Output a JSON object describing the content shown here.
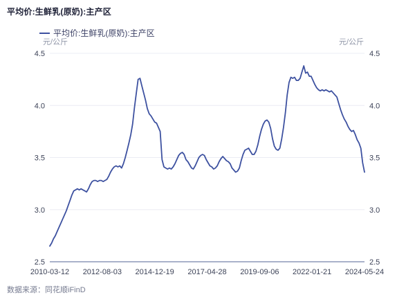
{
  "header": {
    "title": "平均价:生鲜乳(原奶):主产区"
  },
  "legend": {
    "label": "平均价:生鲜乳(原奶):主产区"
  },
  "axes": {
    "unit_left": "元/公斤",
    "unit_right": "元/公斤"
  },
  "footer": {
    "source": "数据来源：同花顺iFinD"
  },
  "style": {
    "line_color": "#3d51a0",
    "grid_color": "#ebecf4",
    "axis_color": "#a9b1ca",
    "tick_text_color": "#3c4257"
  },
  "chart_data": {
    "type": "line",
    "title": "平均价:生鲜乳(原奶):主产区",
    "ylabel": "元/公斤",
    "ylim": [
      2.5,
      4.5
    ],
    "y_ticks": [
      4.5,
      4.0,
      3.5,
      3.0,
      2.5
    ],
    "grid": "horizontal",
    "legend_position": "top-left",
    "x_tick_labels": [
      "2010-03-12",
      "2012-08-03",
      "2014-12-19",
      "2017-04-28",
      "2019-09-06",
      "2022-01-21",
      "2024-05-24"
    ],
    "series": [
      {
        "name": "平均价:生鲜乳(原奶):主产区",
        "color": "#3d51a0",
        "dates": [
          "2010-03",
          "2010-04",
          "2010-05",
          "2010-06",
          "2010-07",
          "2010-08",
          "2010-09",
          "2010-10",
          "2010-11",
          "2010-12",
          "2011-01",
          "2011-02",
          "2011-03",
          "2011-04",
          "2011-05",
          "2011-06",
          "2011-07",
          "2011-08",
          "2011-09",
          "2011-10",
          "2011-11",
          "2011-12",
          "2012-01",
          "2012-02",
          "2012-03",
          "2012-04",
          "2012-05",
          "2012-06",
          "2012-07",
          "2012-08",
          "2012-09",
          "2012-10",
          "2012-11",
          "2012-12",
          "2013-01",
          "2013-02",
          "2013-03",
          "2013-04",
          "2013-05",
          "2013-06",
          "2013-07",
          "2013-08",
          "2013-09",
          "2013-10",
          "2013-11",
          "2013-12",
          "2014-01",
          "2014-02",
          "2014-03",
          "2014-04",
          "2014-05",
          "2014-06",
          "2014-07",
          "2014-08",
          "2014-09",
          "2014-10",
          "2014-11",
          "2014-12",
          "2015-01",
          "2015-02",
          "2015-03",
          "2015-04",
          "2015-05",
          "2015-06",
          "2015-07",
          "2015-08",
          "2015-09",
          "2015-10",
          "2015-11",
          "2015-12",
          "2016-01",
          "2016-02",
          "2016-03",
          "2016-04",
          "2016-05",
          "2016-06",
          "2016-07",
          "2016-08",
          "2016-09",
          "2016-10",
          "2016-11",
          "2016-12",
          "2017-01",
          "2017-02",
          "2017-03",
          "2017-04",
          "2017-05",
          "2017-06",
          "2017-07",
          "2017-08",
          "2017-09",
          "2017-10",
          "2017-11",
          "2017-12",
          "2018-01",
          "2018-02",
          "2018-03",
          "2018-04",
          "2018-05",
          "2018-06",
          "2018-07",
          "2018-08",
          "2018-09",
          "2018-10",
          "2018-11",
          "2018-12",
          "2019-01",
          "2019-02",
          "2019-03",
          "2019-04",
          "2019-05",
          "2019-06",
          "2019-07",
          "2019-08",
          "2019-09",
          "2019-10",
          "2019-11",
          "2019-12",
          "2020-01",
          "2020-02",
          "2020-03",
          "2020-04",
          "2020-05",
          "2020-06",
          "2020-07",
          "2020-08",
          "2020-09",
          "2020-10",
          "2020-11",
          "2020-12",
          "2021-01",
          "2021-02",
          "2021-03",
          "2021-04",
          "2021-05",
          "2021-06",
          "2021-07",
          "2021-08",
          "2021-09",
          "2021-10",
          "2021-11",
          "2021-12",
          "2022-01",
          "2022-02",
          "2022-03",
          "2022-04",
          "2022-05",
          "2022-06",
          "2022-07",
          "2022-08",
          "2022-09",
          "2022-10",
          "2022-11",
          "2022-12",
          "2023-01",
          "2023-02",
          "2023-03",
          "2023-04",
          "2023-05",
          "2023-06",
          "2023-07",
          "2023-08",
          "2023-09",
          "2023-10",
          "2023-11",
          "2023-12",
          "2024-01",
          "2024-02",
          "2024-03",
          "2024-04",
          "2024-05-10",
          "2024-05-24"
        ],
        "values": [
          2.65,
          2.68,
          2.72,
          2.75,
          2.79,
          2.83,
          2.87,
          2.91,
          2.95,
          2.99,
          3.04,
          3.09,
          3.14,
          3.18,
          3.19,
          3.2,
          3.19,
          3.2,
          3.19,
          3.18,
          3.17,
          3.2,
          3.24,
          3.27,
          3.28,
          3.28,
          3.27,
          3.28,
          3.28,
          3.27,
          3.28,
          3.29,
          3.32,
          3.36,
          3.39,
          3.41,
          3.42,
          3.41,
          3.42,
          3.4,
          3.44,
          3.5,
          3.57,
          3.64,
          3.72,
          3.82,
          3.98,
          4.12,
          4.25,
          4.26,
          4.19,
          4.12,
          4.05,
          3.97,
          3.92,
          3.9,
          3.87,
          3.84,
          3.83,
          3.79,
          3.75,
          3.48,
          3.41,
          3.4,
          3.39,
          3.4,
          3.39,
          3.41,
          3.44,
          3.48,
          3.52,
          3.54,
          3.55,
          3.53,
          3.48,
          3.46,
          3.43,
          3.4,
          3.39,
          3.42,
          3.46,
          3.5,
          3.52,
          3.53,
          3.52,
          3.48,
          3.45,
          3.42,
          3.41,
          3.39,
          3.4,
          3.42,
          3.46,
          3.49,
          3.51,
          3.49,
          3.47,
          3.46,
          3.44,
          3.4,
          3.38,
          3.36,
          3.37,
          3.4,
          3.47,
          3.53,
          3.57,
          3.58,
          3.59,
          3.56,
          3.53,
          3.53,
          3.56,
          3.62,
          3.7,
          3.77,
          3.82,
          3.85,
          3.86,
          3.84,
          3.78,
          3.68,
          3.61,
          3.58,
          3.57,
          3.59,
          3.68,
          3.79,
          3.93,
          4.1,
          4.22,
          4.27,
          4.26,
          4.27,
          4.24,
          4.24,
          4.26,
          4.32,
          4.38,
          4.31,
          4.32,
          4.28,
          4.28,
          4.24,
          4.2,
          4.17,
          4.15,
          4.14,
          4.15,
          4.14,
          4.15,
          4.14,
          4.13,
          4.14,
          4.12,
          4.1,
          4.08,
          4.02,
          3.96,
          3.91,
          3.87,
          3.84,
          3.8,
          3.77,
          3.75,
          3.76,
          3.72,
          3.67,
          3.64,
          3.59,
          3.45,
          3.36
        ]
      }
    ]
  }
}
